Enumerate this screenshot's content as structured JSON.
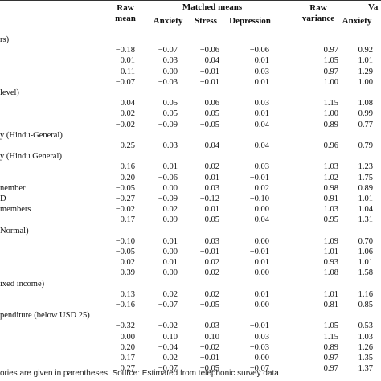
{
  "header": {
    "raw_mean": "Raw mean",
    "matched_means": "Matched means",
    "anxiety": "Anxiety",
    "stress": "Stress",
    "depression": "Depression",
    "raw_variance": "Raw variance",
    "anxiety2": "Anxiety",
    "va": "Va"
  },
  "rows": [
    {
      "label": "rs)",
      "v": [
        "",
        "",
        "",
        "",
        "",
        ""
      ]
    },
    {
      "label": "",
      "v": [
        "−0.18",
        "−0.07",
        "−0.06",
        "−0.06",
        "0.97",
        "0.92"
      ]
    },
    {
      "label": "",
      "v": [
        "0.01",
        "0.03",
        "0.04",
        "0.01",
        "1.05",
        "1.01"
      ]
    },
    {
      "label": "",
      "v": [
        "0.11",
        "0.00",
        "−0.01",
        "0.03",
        "0.97",
        "1.29"
      ]
    },
    {
      "label": "",
      "v": [
        "−0.07",
        "−0.03",
        "−0.01",
        "0.01",
        "1.00",
        "1.00"
      ]
    },
    {
      "label": " level)",
      "v": [
        "",
        "",
        "",
        "",
        "",
        ""
      ]
    },
    {
      "label": "",
      "v": [
        "0.04",
        "0.05",
        "0.06",
        "0.03",
        "1.15",
        "1.08"
      ]
    },
    {
      "label": "",
      "v": [
        "−0.02",
        "0.05",
        "0.05",
        "0.01",
        "1.00",
        "0.99"
      ]
    },
    {
      "label": "",
      "v": [
        "−0.02",
        "−0.09",
        "−0.05",
        "0.04",
        "0.89",
        "0.77"
      ]
    },
    {
      "label": "y (Hindu-General)",
      "v": [
        "",
        "",
        "",
        "",
        "",
        ""
      ]
    },
    {
      "label": "",
      "v": [
        "−0.25",
        "−0.03",
        "−0.04",
        "−0.04",
        "0.96",
        "0.79"
      ]
    },
    {
      "label": "y (Hindu General)",
      "v": [
        "",
        "",
        "",
        "",
        "",
        ""
      ]
    },
    {
      "label": "",
      "v": [
        "−0.16",
        "0.01",
        "0.02",
        "0.03",
        "1.03",
        "1.23"
      ]
    },
    {
      "label": "",
      "v": [
        "0.20",
        "−0.06",
        "0.01",
        "−0.01",
        "1.02",
        "1.75"
      ]
    },
    {
      "label": "nember",
      "v": [
        "−0.05",
        "0.00",
        "0.03",
        "0.02",
        "0.98",
        "0.89"
      ]
    },
    {
      "label": "D",
      "v": [
        "−0.27",
        "−0.09",
        "−0.12",
        "−0.10",
        "0.91",
        "1.01"
      ]
    },
    {
      "label": "members",
      "v": [
        "−0.02",
        "0.02",
        "0.01",
        "0.00",
        "1.03",
        "1.04"
      ]
    },
    {
      "label": "",
      "v": [
        "−0.17",
        "0.09",
        "0.05",
        "0.04",
        "0.95",
        "1.31"
      ]
    },
    {
      "label": "Normal)",
      "v": [
        "",
        "",
        "",
        "",
        "",
        ""
      ]
    },
    {
      "label": "",
      "v": [
        "−0.10",
        "0.01",
        "0.03",
        "0.00",
        "1.09",
        "0.70"
      ]
    },
    {
      "label": "",
      "v": [
        "−0.05",
        "0.00",
        "−0.01",
        "−0.01",
        "1.01",
        "1.06"
      ]
    },
    {
      "label": "",
      "v": [
        "0.02",
        "0.01",
        "0.02",
        "0.01",
        "0.93",
        "1.01"
      ]
    },
    {
      "label": "",
      "v": [
        "0.39",
        "0.00",
        "0.02",
        "0.00",
        "1.08",
        "1.58"
      ]
    },
    {
      "label": "ixed income)",
      "v": [
        "",
        "",
        "",
        "",
        "",
        ""
      ]
    },
    {
      "label": "",
      "v": [
        "0.13",
        "0.02",
        "0.02",
        "0.01",
        "1.01",
        "1.16"
      ]
    },
    {
      "label": "",
      "v": [
        "−0.16",
        "−0.07",
        "−0.05",
        "0.00",
        "0.81",
        "0.85"
      ]
    },
    {
      "label": "penditure (below USD 25)",
      "v": [
        "",
        "",
        "",
        "",
        "",
        ""
      ]
    },
    {
      "label": "",
      "v": [
        "−0.32",
        "−0.02",
        "0.03",
        "−0.01",
        "1.05",
        "0.53"
      ]
    },
    {
      "label": "",
      "v": [
        "0.00",
        "0.10",
        "0.10",
        "0.03",
        "1.15",
        "1.03"
      ]
    },
    {
      "label": "",
      "v": [
        "0.20",
        "−0.04",
        "−0.02",
        "−0.03",
        "0.89",
        "1.26"
      ]
    },
    {
      "label": "",
      "v": [
        "0.17",
        "0.02",
        "−0.01",
        "0.00",
        "0.97",
        "1.35"
      ]
    },
    {
      "label": "",
      "v": [
        "0.27",
        "−0.07",
        "−0.05",
        "−0.07",
        "0.97",
        "1.37"
      ]
    }
  ],
  "footnote": "ories are given in parentheses. Source: Estimated from telephonic survey data"
}
